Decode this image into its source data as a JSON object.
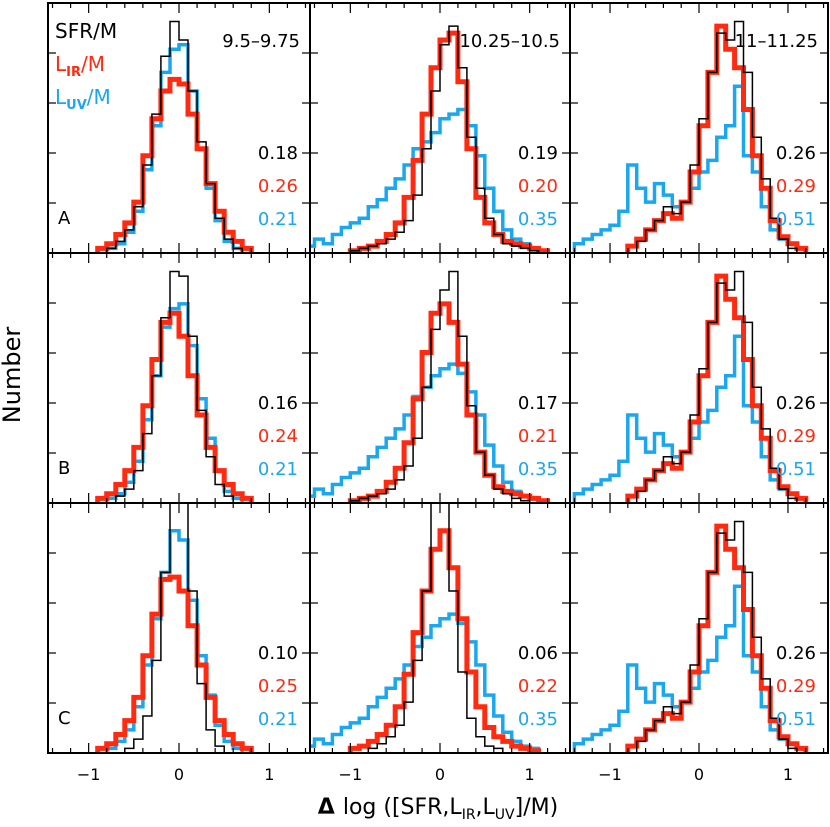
{
  "chart_data": {
    "type": "step-histogram-grid",
    "xlabel_parts": {
      "delta": "Δ",
      "prefix": "log ([SFR,L",
      "sub1": "IR",
      "mid": ",L",
      "sub2": "UV",
      "suffix": "]/M)"
    },
    "ylabel": "Number",
    "xlim": [
      -1.45,
      1.45
    ],
    "xticks": [
      -1,
      0,
      1
    ],
    "legend": [
      {
        "main": "SFR/M",
        "sub": "",
        "tail": "",
        "color": "#000000"
      },
      {
        "main": "L",
        "sub": "IR",
        "tail": "/M",
        "color": "#ff2a10"
      },
      {
        "main": "L",
        "sub": "UV",
        "tail": "/M",
        "color": "#1aa7ee"
      }
    ],
    "colors": {
      "sfr": "#000000",
      "ir": "#ff2a10",
      "uv": "#1aa7ee"
    },
    "mass_bins": [
      "9.5–9.75",
      "10.25–10.5",
      "11–11.25"
    ],
    "row_labels": [
      "A",
      "B",
      "C"
    ],
    "bin_width": 0.1,
    "ylim": [
      0,
      1.08
    ],
    "panels": [
      {
        "row": 0,
        "col": 0,
        "numbers": [
          "0.18",
          "0.26",
          "0.21"
        ],
        "sfr": {
          "start": -0.8,
          "values": [
            0.02,
            0.05,
            0.1,
            0.2,
            0.38,
            0.6,
            0.85,
            1.0,
            0.92,
            0.7,
            0.48,
            0.3,
            0.15,
            0.06,
            0.02
          ]
        },
        "ir": {
          "start": -0.9,
          "values": [
            0.02,
            0.04,
            0.08,
            0.13,
            0.22,
            0.42,
            0.58,
            0.7,
            0.75,
            0.73,
            0.6,
            0.45,
            0.3,
            0.18,
            0.09,
            0.05,
            0.02
          ]
        },
        "uv": {
          "start": -0.8,
          "values": [
            0.02,
            0.04,
            0.09,
            0.18,
            0.36,
            0.55,
            0.78,
            0.88,
            0.9,
            0.7,
            0.45,
            0.28,
            0.14,
            0.05,
            0.02
          ]
        }
      },
      {
        "row": 0,
        "col": 1,
        "numbers": [
          "0.19",
          "0.20",
          "0.35"
        ],
        "sfr": {
          "start": -1.0,
          "values": [
            0.01,
            0.02,
            0.03,
            0.04,
            0.06,
            0.09,
            0.14,
            0.25,
            0.45,
            0.7,
            0.9,
            0.98,
            0.8,
            0.5,
            0.28,
            0.15,
            0.08,
            0.04,
            0.03,
            0.02,
            0.01
          ]
        },
        "ir": {
          "start": -1.0,
          "values": [
            0.01,
            0.02,
            0.03,
            0.05,
            0.08,
            0.13,
            0.24,
            0.4,
            0.6,
            0.8,
            0.92,
            0.95,
            0.74,
            0.45,
            0.24,
            0.13,
            0.08,
            0.05,
            0.04,
            0.03,
            0.02,
            0.01
          ]
        },
        "uv": {
          "start": -1.5,
          "values": [
            0.03,
            0.06,
            0.04,
            0.08,
            0.11,
            0.13,
            0.15,
            0.2,
            0.23,
            0.28,
            0.32,
            0.38,
            0.45,
            0.48,
            0.52,
            0.58,
            0.6,
            0.62,
            0.55,
            0.42,
            0.28,
            0.18,
            0.1,
            0.06,
            0.04,
            0.02
          ]
        }
      },
      {
        "row": 0,
        "col": 2,
        "numbers": [
          "0.26",
          "0.29",
          "0.51"
        ],
        "sfr": {
          "start": -0.7,
          "values": [
            0.05,
            0.1,
            0.14,
            0.2,
            0.17,
            0.22,
            0.38,
            0.58,
            0.78,
            0.95,
            0.92,
            1.0,
            0.78,
            0.5,
            0.32,
            0.15,
            0.06,
            0.02
          ]
        },
        "ir": {
          "start": -0.8,
          "values": [
            0.03,
            0.06,
            0.1,
            0.14,
            0.17,
            0.15,
            0.22,
            0.35,
            0.55,
            0.78,
            0.98,
            0.88,
            0.8,
            0.62,
            0.42,
            0.28,
            0.14,
            0.07,
            0.04,
            0.02
          ]
        },
        "uv": {
          "start": -1.4,
          "values": [
            0.04,
            0.06,
            0.08,
            0.1,
            0.12,
            0.18,
            0.38,
            0.28,
            0.22,
            0.3,
            0.25,
            0.2,
            0.22,
            0.28,
            0.35,
            0.4,
            0.5,
            0.55,
            0.72,
            0.42,
            0.35,
            0.2,
            0.1,
            0.06,
            0.04,
            0.02
          ]
        }
      },
      {
        "row": 1,
        "col": 0,
        "numbers": [
          "0.16",
          "0.24",
          "0.21"
        ],
        "sfr": {
          "start": -0.7,
          "values": [
            0.03,
            0.06,
            0.14,
            0.3,
            0.55,
            0.8,
            1.0,
            0.98,
            0.72,
            0.4,
            0.2,
            0.08,
            0.03
          ]
        },
        "ir": {
          "start": -0.9,
          "values": [
            0.02,
            0.04,
            0.08,
            0.14,
            0.24,
            0.42,
            0.62,
            0.78,
            0.82,
            0.72,
            0.55,
            0.38,
            0.24,
            0.14,
            0.08,
            0.04,
            0.02
          ]
        },
        "uv": {
          "start": -0.8,
          "values": [
            0.02,
            0.04,
            0.09,
            0.18,
            0.36,
            0.55,
            0.76,
            0.84,
            0.86,
            0.68,
            0.45,
            0.28,
            0.14,
            0.05,
            0.02
          ]
        }
      },
      {
        "row": 1,
        "col": 1,
        "numbers": [
          "0.17",
          "0.21",
          "0.35"
        ],
        "sfr": {
          "start": -1.0,
          "values": [
            0.01,
            0.02,
            0.03,
            0.04,
            0.06,
            0.1,
            0.16,
            0.28,
            0.5,
            0.75,
            0.92,
            1.0,
            0.72,
            0.42,
            0.22,
            0.12,
            0.06,
            0.04,
            0.02,
            0.01
          ]
        },
        "ir": {
          "start": -1.0,
          "values": [
            0.01,
            0.02,
            0.03,
            0.05,
            0.09,
            0.15,
            0.26,
            0.45,
            0.65,
            0.82,
            0.86,
            0.78,
            0.6,
            0.38,
            0.22,
            0.12,
            0.07,
            0.05,
            0.04,
            0.03,
            0.02,
            0.01
          ]
        },
        "uv": {
          "start": -1.5,
          "values": [
            0.03,
            0.06,
            0.04,
            0.08,
            0.11,
            0.13,
            0.15,
            0.2,
            0.24,
            0.28,
            0.32,
            0.38,
            0.46,
            0.5,
            0.55,
            0.58,
            0.6,
            0.56,
            0.48,
            0.38,
            0.25,
            0.16,
            0.09,
            0.05,
            0.03,
            0.02
          ]
        }
      },
      {
        "row": 1,
        "col": 2,
        "numbers": [
          "0.26",
          "0.29",
          "0.51"
        ],
        "sfr": {
          "start": -0.7,
          "values": [
            0.05,
            0.1,
            0.14,
            0.2,
            0.17,
            0.22,
            0.38,
            0.58,
            0.78,
            0.95,
            0.92,
            1.0,
            0.78,
            0.5,
            0.32,
            0.15,
            0.06,
            0.02
          ]
        },
        "ir": {
          "start": -0.8,
          "values": [
            0.03,
            0.06,
            0.1,
            0.14,
            0.17,
            0.15,
            0.22,
            0.35,
            0.55,
            0.78,
            0.98,
            0.88,
            0.8,
            0.62,
            0.42,
            0.28,
            0.14,
            0.07,
            0.04,
            0.02
          ]
        },
        "uv": {
          "start": -1.4,
          "values": [
            0.04,
            0.06,
            0.08,
            0.1,
            0.12,
            0.18,
            0.38,
            0.28,
            0.22,
            0.3,
            0.25,
            0.2,
            0.22,
            0.28,
            0.35,
            0.4,
            0.5,
            0.55,
            0.72,
            0.42,
            0.35,
            0.2,
            0.1,
            0.06,
            0.04,
            0.02
          ]
        }
      },
      {
        "row": 2,
        "col": 0,
        "numbers": [
          "0.10",
          "0.25",
          "0.21"
        ],
        "sfr": {
          "start": -0.6,
          "values": [
            0.02,
            0.06,
            0.16,
            0.4,
            0.78,
            1.1,
            1.1,
            0.7,
            0.3,
            0.1,
            0.03
          ]
        },
        "ir": {
          "start": -0.9,
          "values": [
            0.02,
            0.04,
            0.08,
            0.14,
            0.24,
            0.42,
            0.6,
            0.75,
            0.76,
            0.7,
            0.55,
            0.38,
            0.24,
            0.14,
            0.08,
            0.04,
            0.02
          ]
        },
        "uv": {
          "start": -0.8,
          "values": [
            0.02,
            0.05,
            0.1,
            0.2,
            0.38,
            0.58,
            0.78,
            0.96,
            0.92,
            0.66,
            0.42,
            0.25,
            0.12,
            0.05,
            0.02
          ]
        }
      },
      {
        "row": 2,
        "col": 1,
        "numbers": [
          "0.06",
          "0.22",
          "0.35"
        ],
        "sfr": {
          "start": -0.8,
          "values": [
            0.02,
            0.04,
            0.07,
            0.12,
            0.22,
            0.4,
            0.7,
            1.1,
            1.1,
            0.7,
            0.35,
            0.15,
            0.07,
            0.03,
            0.02
          ]
        },
        "ir": {
          "start": -1.0,
          "values": [
            0.02,
            0.03,
            0.05,
            0.08,
            0.12,
            0.2,
            0.34,
            0.52,
            0.7,
            0.88,
            0.96,
            0.8,
            0.58,
            0.35,
            0.2,
            0.11,
            0.07,
            0.05,
            0.03,
            0.02,
            0.01
          ]
        },
        "uv": {
          "start": -1.5,
          "values": [
            0.03,
            0.06,
            0.04,
            0.08,
            0.11,
            0.13,
            0.15,
            0.2,
            0.24,
            0.28,
            0.32,
            0.38,
            0.46,
            0.5,
            0.55,
            0.58,
            0.6,
            0.56,
            0.48,
            0.38,
            0.25,
            0.16,
            0.09,
            0.05,
            0.03,
            0.02
          ]
        }
      },
      {
        "row": 2,
        "col": 2,
        "numbers": [
          "0.26",
          "0.29",
          "0.51"
        ],
        "sfr": {
          "start": -0.7,
          "values": [
            0.05,
            0.1,
            0.14,
            0.2,
            0.17,
            0.22,
            0.38,
            0.58,
            0.78,
            0.95,
            0.92,
            1.0,
            0.78,
            0.5,
            0.32,
            0.15,
            0.06,
            0.02
          ]
        },
        "ir": {
          "start": -0.8,
          "values": [
            0.03,
            0.06,
            0.1,
            0.14,
            0.17,
            0.15,
            0.22,
            0.35,
            0.55,
            0.78,
            0.98,
            0.88,
            0.8,
            0.62,
            0.42,
            0.28,
            0.14,
            0.07,
            0.04,
            0.02
          ]
        },
        "uv": {
          "start": -1.4,
          "values": [
            0.04,
            0.06,
            0.08,
            0.1,
            0.12,
            0.18,
            0.38,
            0.28,
            0.22,
            0.3,
            0.25,
            0.2,
            0.22,
            0.28,
            0.35,
            0.4,
            0.5,
            0.55,
            0.72,
            0.42,
            0.35,
            0.2,
            0.1,
            0.06,
            0.04,
            0.02
          ]
        }
      }
    ]
  }
}
